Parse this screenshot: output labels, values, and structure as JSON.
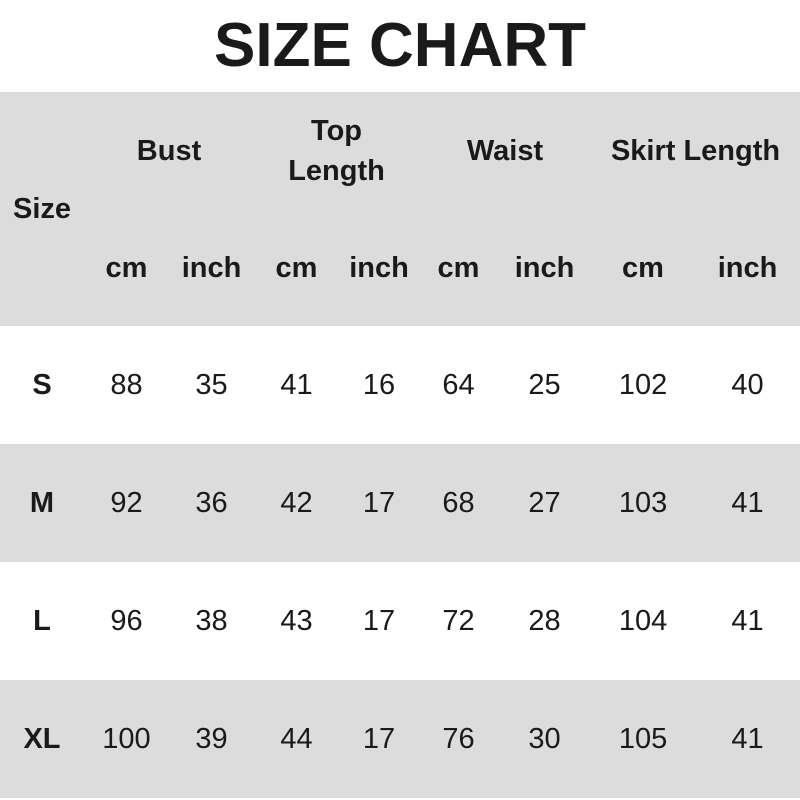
{
  "title": "SIZE CHART",
  "header": {
    "size_label": "Size",
    "groups": [
      "Bust",
      "Top\nLength",
      "Waist",
      "Skirt Length"
    ],
    "units": [
      "cm",
      "inch",
      "cm",
      "inch",
      "cm",
      "inch",
      "cm",
      "inch"
    ]
  },
  "colors": {
    "band": "#dcdcdc",
    "text": "#1a1a1a"
  },
  "rows": [
    {
      "size": "S",
      "values": [
        "88",
        "35",
        "41",
        "16",
        "64",
        "25",
        "102",
        "40"
      ]
    },
    {
      "size": "M",
      "values": [
        "92",
        "36",
        "42",
        "17",
        "68",
        "27",
        "103",
        "41"
      ]
    },
    {
      "size": "L",
      "values": [
        "96",
        "38",
        "43",
        "17",
        "72",
        "28",
        "104",
        "41"
      ]
    },
    {
      "size": "XL",
      "values": [
        "100",
        "39",
        "44",
        "17",
        "76",
        "30",
        "105",
        "41"
      ]
    }
  ]
}
